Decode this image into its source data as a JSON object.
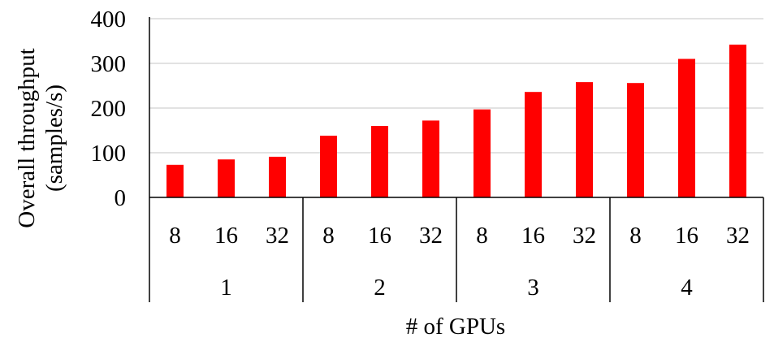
{
  "chart_data": {
    "type": "bar",
    "title": "",
    "ylabel": "Overall throughput",
    "ylabel_unit": "(samples/s)",
    "xlabel": "# of GPUs",
    "ylim": [
      0,
      400
    ],
    "yticks": [
      0,
      100,
      200,
      300,
      400
    ],
    "grid": true,
    "legend": "none",
    "bar_color": "#ff0000",
    "groups": [
      {
        "label": "1",
        "categories": [
          "8",
          "16",
          "32"
        ],
        "values": [
          73,
          85,
          91
        ]
      },
      {
        "label": "2",
        "categories": [
          "8",
          "16",
          "32"
        ],
        "values": [
          138,
          160,
          172
        ]
      },
      {
        "label": "3",
        "categories": [
          "8",
          "16",
          "32"
        ],
        "values": [
          197,
          236,
          258
        ]
      },
      {
        "label": "4",
        "categories": [
          "8",
          "16",
          "32"
        ],
        "values": [
          256,
          310,
          342
        ]
      }
    ]
  }
}
